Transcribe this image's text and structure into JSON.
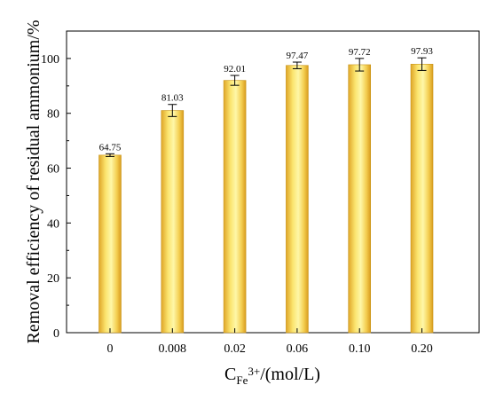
{
  "chart_data": {
    "type": "bar",
    "categories": [
      "0",
      "0.008",
      "0.02",
      "0.06",
      "0.10",
      "0.20"
    ],
    "values": [
      64.75,
      81.03,
      92.01,
      97.47,
      97.72,
      97.93
    ],
    "error_bars": [
      0.5,
      2.2,
      1.8,
      1.2,
      2.3,
      2.3
    ],
    "data_labels": [
      "64.75",
      "81.03",
      "92.01",
      "97.47",
      "97.72",
      "97.93"
    ],
    "title": "",
    "xlabel": {
      "main": "C",
      "subscript": "Fe",
      "superscript": "3+",
      "suffix": "/(mol/L)"
    },
    "ylabel": "Removal efficiency of residual ammonium/%",
    "ylim": [
      0,
      110
    ],
    "yticks": [
      0,
      20,
      40,
      60,
      80,
      100
    ],
    "ytick_labels": [
      "0",
      "20",
      "40",
      "60",
      "80",
      "100"
    ],
    "grid": false,
    "legend": "none",
    "colors": {
      "bar_light": "#fdf39a",
      "bar_mid": "#f3c84a",
      "bar_dark": "#dea323",
      "axis": "#000000"
    }
  }
}
